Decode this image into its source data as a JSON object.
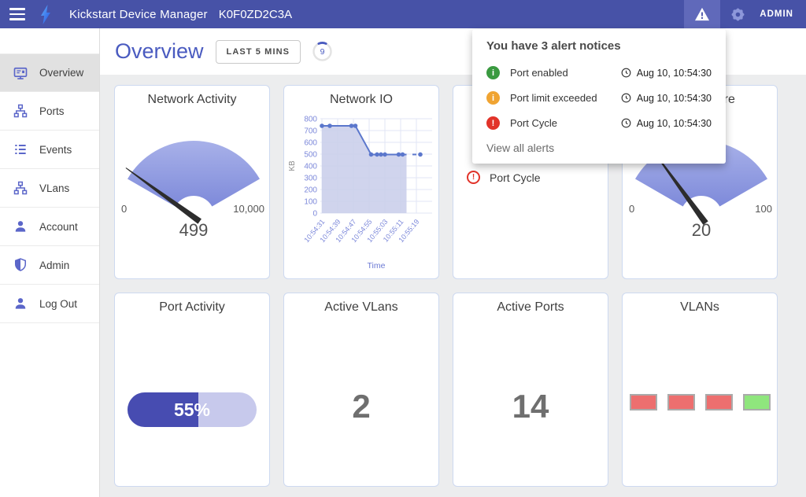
{
  "theme": {
    "appbar_bg": "#4752a7",
    "appbar_highlight": "#6069ba",
    "accent": "#4a5bc0",
    "page_bg": "#ecedee",
    "card_border": "#cdd9f0",
    "gauge_gradient_top": "#a8b1e9",
    "gauge_gradient_bottom": "#7e8ada",
    "needle_color": "#2d2d2d",
    "sidebar_icon_color": "#5b66c9"
  },
  "app_bar": {
    "title": "Kickstart Device Manager",
    "device_id": "K0F0ZD2C3A",
    "user_label": "ADMIN"
  },
  "sidebar": {
    "items": [
      {
        "label": "Overview",
        "icon": "monitor-icon",
        "selected": true
      },
      {
        "label": "Ports",
        "icon": "network-hub-icon",
        "selected": false
      },
      {
        "label": "Events",
        "icon": "list-icon",
        "selected": false
      },
      {
        "label": "VLans",
        "icon": "network-hub-icon",
        "selected": false
      },
      {
        "label": "Account",
        "icon": "person-icon",
        "selected": false
      },
      {
        "label": "Admin",
        "icon": "shield-icon",
        "selected": false
      },
      {
        "label": "Log Out",
        "icon": "person-icon",
        "selected": false
      }
    ]
  },
  "header": {
    "title": "Overview",
    "time_range_label": "LAST 5 MINS",
    "refresh_badge": "9"
  },
  "alerts_panel": {
    "title": "You have 3 alert notices",
    "view_all_label": "View all alerts",
    "items": [
      {
        "severity": "success",
        "icon": "info-circle-icon",
        "glyph": "i",
        "color": "#3a9a40",
        "label": "Port enabled",
        "timestamp": "Aug 10, 10:54:30"
      },
      {
        "severity": "warning",
        "icon": "info-circle-icon",
        "glyph": "i",
        "color": "#f0a432",
        "label": "Port limit exceeded",
        "timestamp": "Aug 10, 10:54:30"
      },
      {
        "severity": "error",
        "icon": "error-circle-icon",
        "glyph": "!",
        "color": "#e23329",
        "label": "Port Cycle",
        "timestamp": "Aug 10, 10:54:30"
      }
    ]
  },
  "cards": {
    "network_activity": {
      "type": "gauge",
      "title": "Network Activity",
      "min": 0,
      "max": 10000,
      "value": 499,
      "min_label": "0",
      "max_label": "10,000",
      "value_label": "499"
    },
    "network_io": {
      "type": "line",
      "title": "Network IO",
      "x_label": "Time",
      "y_label": "KB",
      "y_min": 0,
      "y_max": 800,
      "y_tick_step": 100,
      "x_ticks": [
        "10:54:31",
        "10:54:39",
        "10:54:47",
        "10:54:55",
        "10:55:03",
        "10:55:11",
        "10:55:19"
      ],
      "line_color": "#5b77cc",
      "fill_color": "#cbcfeb",
      "segments": [
        [
          [
            "10:54:31",
            740
          ],
          [
            "10:54:35",
            740
          ],
          [
            "10:54:46",
            740
          ],
          [
            "10:54:48",
            740
          ],
          [
            "10:54:56",
            497
          ],
          [
            "10:54:59",
            497
          ],
          [
            "10:55:01",
            497
          ],
          [
            "10:55:03",
            497
          ],
          [
            "10:55:10",
            497
          ],
          [
            "10:55:12",
            497
          ],
          [
            "10:55:14",
            497
          ]
        ],
        [
          [
            "10:55:17",
            497
          ],
          [
            "10:55:19",
            497
          ]
        ],
        [
          [
            "10:55:21",
            497
          ]
        ]
      ],
      "dots": [
        [
          "10:54:31",
          740
        ],
        [
          "10:54:35",
          740
        ],
        [
          "10:54:46",
          740
        ],
        [
          "10:54:48",
          740
        ],
        [
          "10:54:56",
          497
        ],
        [
          "10:54:59",
          497
        ],
        [
          "10:55:01",
          497
        ],
        [
          "10:55:03",
          497
        ],
        [
          "10:55:10",
          497
        ],
        [
          "10:55:12",
          497
        ],
        [
          "10:55:21",
          497
        ]
      ]
    },
    "device_alerts": {
      "type": "alert-list",
      "title": "",
      "items": [
        {
          "icon": "error-outline-icon",
          "glyph": "!",
          "color": "#e23329",
          "label": "Port Cycle"
        }
      ]
    },
    "temperature": {
      "type": "gauge",
      "title": "Temperature",
      "min": 0,
      "max": 100,
      "value": 20,
      "min_label": "0",
      "max_label": "100",
      "value_label": "20"
    },
    "port_activity": {
      "type": "progress",
      "title": "Port Activity",
      "percent": 55,
      "label": "55%",
      "fill_color": "#474cb1",
      "track_color": "#c7c9ec"
    },
    "active_vlans": {
      "type": "stat",
      "title": "Active VLans",
      "value": "2"
    },
    "active_ports": {
      "type": "stat",
      "title": "Active Ports",
      "value": "14"
    },
    "vlans": {
      "type": "blocks",
      "title": "VLANs",
      "block_border": "#ababab",
      "blocks": [
        {
          "color": "#ed6f6f"
        },
        {
          "color": "#ed6f6f"
        },
        {
          "color": "#ed6f6f"
        },
        {
          "color": "#8fe67d"
        }
      ]
    }
  }
}
